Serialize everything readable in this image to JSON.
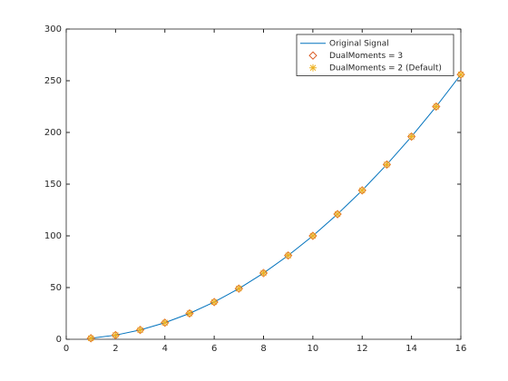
{
  "chart_data": {
    "type": "line",
    "x": [
      1,
      2,
      3,
      4,
      5,
      6,
      7,
      8,
      9,
      10,
      11,
      12,
      13,
      14,
      15,
      16
    ],
    "series": [
      {
        "name": "Original Signal",
        "color": "#0072bd",
        "marker": "none",
        "values": [
          1,
          4,
          9,
          16,
          25,
          36,
          49,
          64,
          81,
          100,
          121,
          144,
          169,
          196,
          225,
          256
        ]
      },
      {
        "name": "DualMoments = 3",
        "color": "#d95319",
        "marker": "diamond",
        "values": [
          1,
          4,
          9,
          16,
          25,
          36,
          49,
          64,
          81,
          100,
          121,
          144,
          169,
          196,
          225,
          256
        ]
      },
      {
        "name": "DualMoments = 2 (Default)",
        "color": "#edb120",
        "marker": "asterisk",
        "values": [
          1,
          4,
          9,
          16,
          25,
          36,
          49,
          64,
          81,
          100,
          121,
          144,
          169,
          196,
          225,
          256
        ]
      }
    ],
    "xlim": [
      0,
      16
    ],
    "xticks": [
      0,
      2,
      4,
      6,
      8,
      10,
      12,
      14,
      16
    ],
    "ylim": [
      0,
      300
    ],
    "yticks": [
      0,
      50,
      100,
      150,
      200,
      250,
      300
    ],
    "grid": false,
    "legend": "northeast"
  }
}
